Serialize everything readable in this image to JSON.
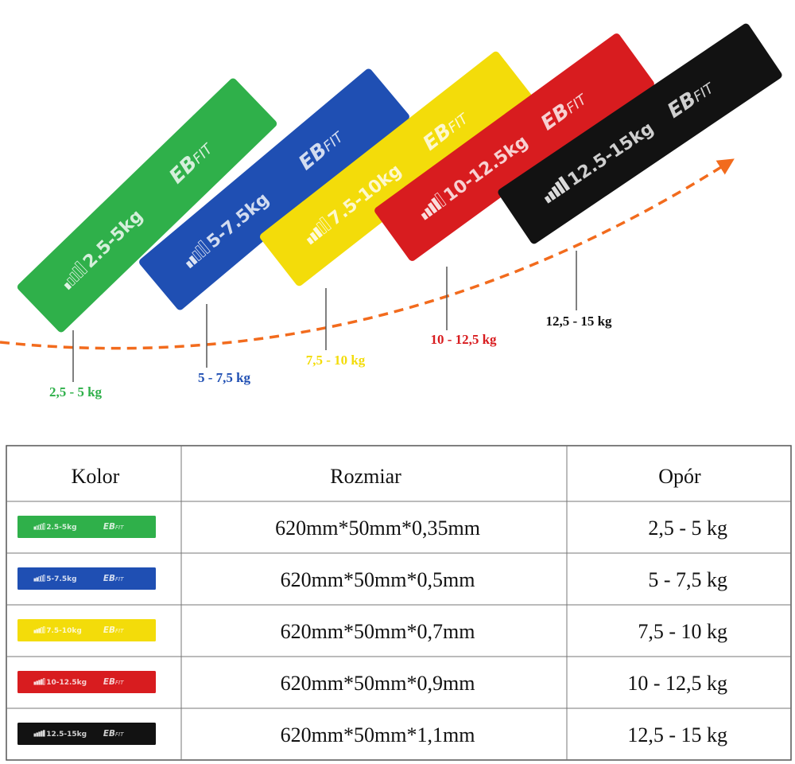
{
  "brand": {
    "mark": "EB",
    "suffix": "FIT"
  },
  "bands": [
    {
      "label": "2.5-5kg",
      "callout": "2,5 - 5 kg",
      "color": "#2fb04a"
    },
    {
      "label": "5-7.5kg",
      "callout": "5 - 7,5 kg",
      "color": "#1f4fb3"
    },
    {
      "label": "7.5-10kg",
      "callout": "7,5 - 10 kg",
      "color": "#f3dc0a"
    },
    {
      "label": "10-12.5kg",
      "callout": "10 - 12,5 kg",
      "color": "#d81c1f"
    },
    {
      "label": "12.5-15kg",
      "callout": "12,5 - 15 kg",
      "color": "#121212"
    }
  ],
  "table": {
    "headers": [
      "Kolor",
      "Rozmiar",
      "Opór"
    ],
    "rows": [
      [
        "620mm*50mm*0,35mm",
        "2,5 - 5 kg"
      ],
      [
        "620mm*50mm*0,5mm",
        "5 - 7,5 kg"
      ],
      [
        "620mm*50mm*0,7mm",
        "7,5 - 10 kg"
      ],
      [
        "620mm*50mm*0,9mm",
        "10 - 12,5 kg"
      ],
      [
        "620mm*50mm*1,1mm",
        "12,5 - 15 kg"
      ]
    ]
  }
}
